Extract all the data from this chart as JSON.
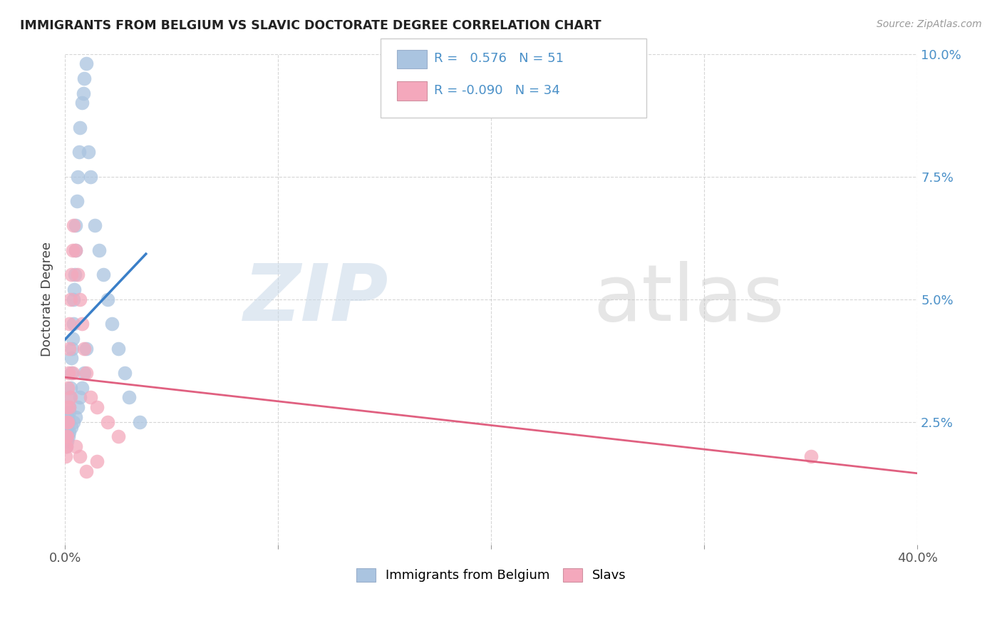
{
  "title": "IMMIGRANTS FROM BELGIUM VS SLAVIC DOCTORATE DEGREE CORRELATION CHART",
  "source": "Source: ZipAtlas.com",
  "ylabel": "Doctorate Degree",
  "legend_label1": "Immigrants from Belgium",
  "legend_label2": "Slavs",
  "r1": 0.576,
  "n1": 51,
  "r2": -0.09,
  "n2": 34,
  "color1": "#aac4e0",
  "color2": "#f4a8bc",
  "trendline1_color": "#3a7fc8",
  "trendline2_color": "#e06080",
  "xlim": [
    0,
    40
  ],
  "ylim": [
    0,
    10
  ],
  "blue_x": [
    0.05,
    0.07,
    0.08,
    0.1,
    0.12,
    0.15,
    0.18,
    0.2,
    0.22,
    0.25,
    0.28,
    0.3,
    0.32,
    0.35,
    0.38,
    0.4,
    0.42,
    0.45,
    0.48,
    0.5,
    0.55,
    0.6,
    0.65,
    0.7,
    0.8,
    0.85,
    0.9,
    1.0,
    1.1,
    1.2,
    1.4,
    1.6,
    1.8,
    2.0,
    2.2,
    2.5,
    2.8,
    3.0,
    3.5,
    0.05,
    0.1,
    0.15,
    0.2,
    0.3,
    0.4,
    0.5,
    0.6,
    0.7,
    0.8,
    0.9,
    1.0
  ],
  "blue_y": [
    2.3,
    2.5,
    2.2,
    2.4,
    2.6,
    2.5,
    2.7,
    2.8,
    3.0,
    3.2,
    3.5,
    3.8,
    4.0,
    4.2,
    4.5,
    5.0,
    5.2,
    5.5,
    6.0,
    6.5,
    7.0,
    7.5,
    8.0,
    8.5,
    9.0,
    9.2,
    9.5,
    9.8,
    8.0,
    7.5,
    6.5,
    6.0,
    5.5,
    5.0,
    4.5,
    4.0,
    3.5,
    3.0,
    2.5,
    2.0,
    2.1,
    2.2,
    2.3,
    2.4,
    2.5,
    2.6,
    2.8,
    3.0,
    3.2,
    3.5,
    4.0
  ],
  "pink_x": [
    0.02,
    0.04,
    0.06,
    0.08,
    0.1,
    0.12,
    0.15,
    0.18,
    0.2,
    0.25,
    0.3,
    0.35,
    0.4,
    0.5,
    0.6,
    0.7,
    0.8,
    0.9,
    1.0,
    1.2,
    1.5,
    2.0,
    2.5,
    0.05,
    0.08,
    0.12,
    0.18,
    0.25,
    0.35,
    0.5,
    0.7,
    1.0,
    1.5,
    35.0
  ],
  "pink_y": [
    1.8,
    2.0,
    2.2,
    2.5,
    2.8,
    3.2,
    3.5,
    4.0,
    4.5,
    5.0,
    5.5,
    6.0,
    6.5,
    6.0,
    5.5,
    5.0,
    4.5,
    4.0,
    3.5,
    3.0,
    2.8,
    2.5,
    2.2,
    2.0,
    2.2,
    2.5,
    2.8,
    3.0,
    3.5,
    2.0,
    1.8,
    1.5,
    1.7,
    1.8
  ]
}
